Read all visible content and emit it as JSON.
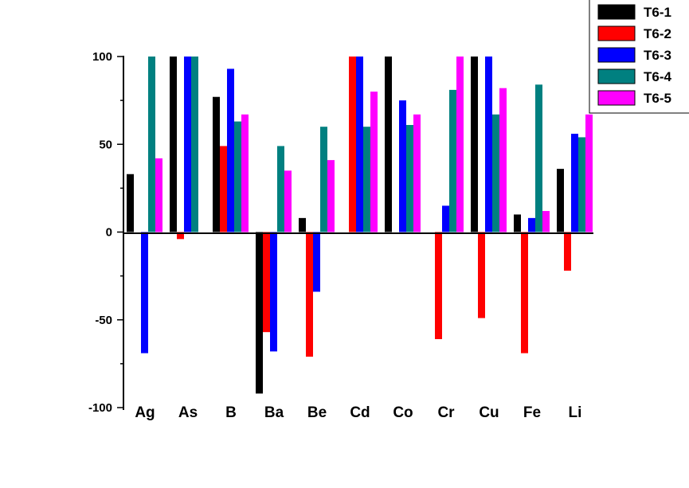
{
  "chart_data": {
    "type": "bar",
    "categories": [
      "Ag",
      "As",
      "B",
      "Ba",
      "Be",
      "Cd",
      "Co",
      "Cr",
      "Cu",
      "Fe",
      "Li"
    ],
    "series": [
      {
        "name": "T6-1",
        "color": "#000000",
        "values": [
          33,
          100,
          77,
          -92,
          8,
          0,
          100,
          0,
          100,
          10,
          36
        ]
      },
      {
        "name": "T6-2",
        "color": "#ff0000",
        "values": [
          0,
          -4,
          49,
          -57,
          -71,
          100,
          0,
          -61,
          -49,
          -69,
          -22
        ]
      },
      {
        "name": "T6-3",
        "color": "#0000ff",
        "values": [
          -69,
          100,
          93,
          -68,
          -34,
          100,
          75,
          15,
          100,
          8,
          56
        ]
      },
      {
        "name": "T6-4",
        "color": "#008080",
        "values": [
          100,
          100,
          63,
          49,
          60,
          60,
          61,
          81,
          67,
          84,
          54
        ]
      },
      {
        "name": "T6-5",
        "color": "#ff00ff",
        "values": [
          42,
          0,
          67,
          35,
          41,
          80,
          67,
          100,
          82,
          12,
          67
        ]
      }
    ],
    "yticks": [
      -100,
      -50,
      0,
      50,
      100
    ],
    "ylim": [
      -100,
      100
    ],
    "legend_position": "top-right"
  }
}
